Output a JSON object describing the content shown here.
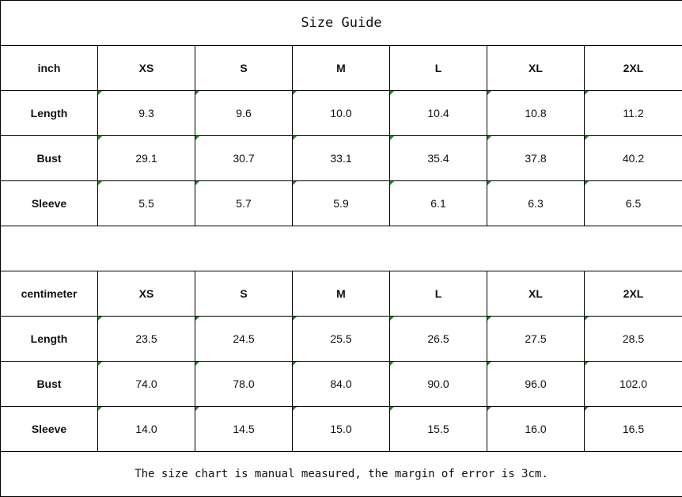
{
  "title": "Size Guide",
  "sizes": [
    "XS",
    "S",
    "M",
    "L",
    "XL",
    "2XL"
  ],
  "inch": {
    "unit_label": "inch",
    "rows": [
      {
        "label": "Length",
        "values": [
          "9.3",
          "9.6",
          "10.0",
          "10.4",
          "10.8",
          "11.2"
        ]
      },
      {
        "label": "Bust",
        "values": [
          "29.1",
          "30.7",
          "33.1",
          "35.4",
          "37.8",
          "40.2"
        ]
      },
      {
        "label": "Sleeve",
        "values": [
          "5.5",
          "5.7",
          "5.9",
          "6.1",
          "6.3",
          "6.5"
        ]
      }
    ]
  },
  "centimeter": {
    "unit_label": "centimeter",
    "rows": [
      {
        "label": "Length",
        "values": [
          "23.5",
          "24.5",
          "25.5",
          "26.5",
          "27.5",
          "28.5"
        ]
      },
      {
        "label": "Bust",
        "values": [
          "74.0",
          "78.0",
          "84.0",
          "90.0",
          "96.0",
          "102.0"
        ]
      },
      {
        "label": "Sleeve",
        "values": [
          "14.0",
          "14.5",
          "15.0",
          "15.5",
          "16.0",
          "16.5"
        ]
      }
    ]
  },
  "note": "The size chart is manual measured, the margin of error is 3cm.",
  "colors": {
    "cell_marker": "#1a8a1a",
    "border": "#000000"
  }
}
